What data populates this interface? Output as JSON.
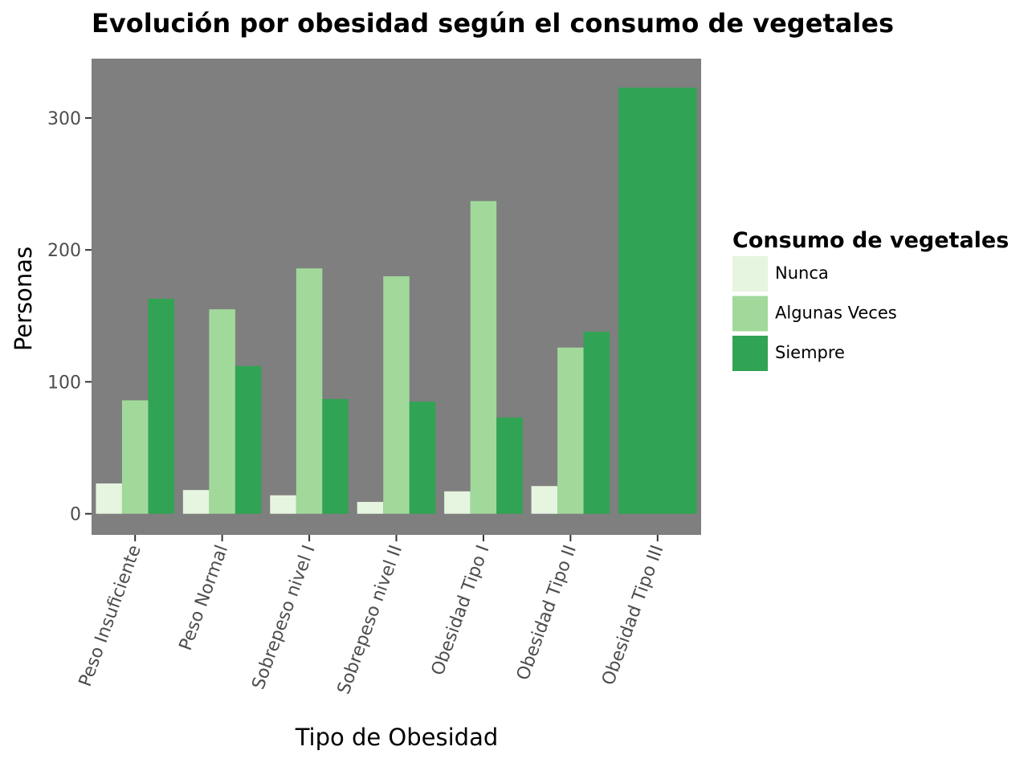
{
  "chart_data": {
    "type": "bar",
    "title": "Evolución por obesidad según el consumo de vegetales",
    "xlabel": "Tipo de Obesidad",
    "ylabel": "Personas",
    "ylim": [
      -16,
      345
    ],
    "yticks": [
      0,
      100,
      200,
      300
    ],
    "grid": false,
    "background": "#7f7f7f",
    "categories": [
      "Peso Insuficiente",
      "Peso Normal",
      "Sobrepeso nivel I",
      "Sobrepeso nivel II",
      "Obesidad Tipo I",
      "Obesidad Tipo II",
      "Obesidad Tipo III"
    ],
    "legend": {
      "title": "Consumo de vegetales",
      "position": "right"
    },
    "series": [
      {
        "name": "Nunca",
        "color": "#e5f5e0",
        "values": [
          23,
          18,
          14,
          9,
          17,
          21,
          0
        ]
      },
      {
        "name": "Algunas Veces",
        "color": "#a1d99b",
        "values": [
          86,
          155,
          186,
          180,
          237,
          126,
          0
        ]
      },
      {
        "name": "Siempre",
        "color": "#31a354",
        "values": [
          163,
          112,
          87,
          85,
          73,
          138,
          323
        ]
      }
    ]
  }
}
